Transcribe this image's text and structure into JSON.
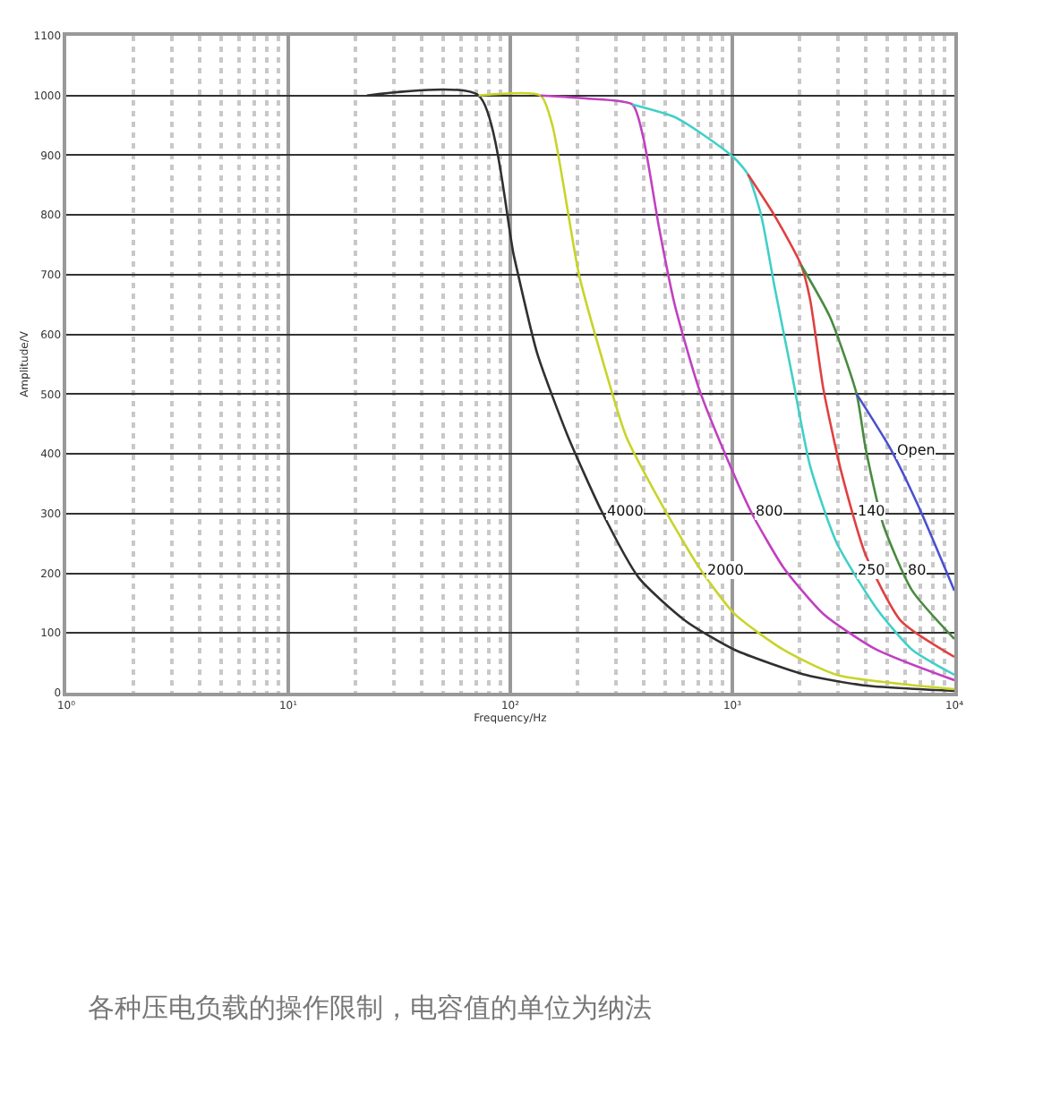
{
  "chart_data": {
    "type": "line",
    "xlabel": "Frequency/Hz",
    "ylabel": "Amplitude/V",
    "log": "x",
    "grid": true,
    "marker": "none",
    "line_style": "solid",
    "xlim": [
      1,
      10000
    ],
    "xticks": [
      {
        "value": 1,
        "label": "10⁰"
      },
      {
        "value": 2,
        "label": null
      },
      {
        "value": 3,
        "label": null
      },
      {
        "value": 4,
        "label": null
      },
      {
        "value": 5,
        "label": null
      },
      {
        "value": 6,
        "label": null
      },
      {
        "value": 7,
        "label": null
      },
      {
        "value": 8,
        "label": null
      },
      {
        "value": 9,
        "label": null
      },
      {
        "value": 10,
        "label": "10¹"
      },
      {
        "value": 20,
        "label": null
      },
      {
        "value": 30,
        "label": null
      },
      {
        "value": 40,
        "label": null
      },
      {
        "value": 50,
        "label": null
      },
      {
        "value": 60,
        "label": null
      },
      {
        "value": 70,
        "label": null
      },
      {
        "value": 80,
        "label": null
      },
      {
        "value": 90,
        "label": null
      },
      {
        "value": 100,
        "label": "10²"
      },
      {
        "value": 200,
        "label": null
      },
      {
        "value": 300,
        "label": null
      },
      {
        "value": 400,
        "label": null
      },
      {
        "value": 500,
        "label": null
      },
      {
        "value": 600,
        "label": null
      },
      {
        "value": 700,
        "label": null
      },
      {
        "value": 800,
        "label": null
      },
      {
        "value": 900,
        "label": null
      },
      {
        "value": 1000,
        "label": "10³"
      },
      {
        "value": 2000,
        "label": null
      },
      {
        "value": 3000,
        "label": null
      },
      {
        "value": 4000,
        "label": null
      },
      {
        "value": 5000,
        "label": null
      },
      {
        "value": 6000,
        "label": null
      },
      {
        "value": 7000,
        "label": null
      },
      {
        "value": 8000,
        "label": null
      },
      {
        "value": 9000,
        "label": null
      },
      {
        "value": 10000,
        "label": "10⁴"
      }
    ],
    "ylim": [
      0,
      1100
    ],
    "yticks": [
      0,
      100,
      200,
      300,
      400,
      500,
      600,
      700,
      800,
      900,
      1000,
      1100
    ],
    "series": [
      {
        "name": "4000",
        "color": "#303030",
        "x": [
          22.6,
          72,
          104,
          132,
          181,
          257,
          380,
          617,
          1023,
          2138,
          3981,
          10000
        ],
        "values": [
          1000,
          1000,
          730,
          569,
          431,
          305,
          192,
          120,
          72,
          30,
          12,
          3
        ]
      },
      {
        "name": "2000",
        "color": "#c8d42a",
        "x": [
          72,
          137,
          155,
          204,
          263,
          331,
          457,
          708,
          1023,
          1698,
          2951,
          10000
        ],
        "values": [
          1000,
          1000,
          949,
          700,
          551,
          431,
          330,
          210,
          132,
          72,
          30,
          6
        ]
      },
      {
        "name": "800",
        "color": "#c040c0",
        "x": [
          137,
          220,
          355,
          398,
          468,
          550,
          708,
          955,
          1230,
          1698,
          2570,
          4467,
          10000
        ],
        "values": [
          1000,
          995,
          985,
          928,
          778,
          650,
          509,
          389,
          299,
          210,
          132,
          72,
          21
        ]
      },
      {
        "name": "250",
        "color": "#40d0c8",
        "x": [
          355,
          550,
          741,
          1023,
          1175,
          1349,
          1549,
          1862,
          2239,
          2951,
          4467,
          6457,
          10000
        ],
        "values": [
          985,
          964,
          934,
          895,
          868,
          799,
          680,
          530,
          380,
          251,
          141,
          72,
          30
        ]
      },
      {
        "name": "140",
        "color": "#e04040",
        "x": [
          1175,
          1549,
          2042,
          2239,
          2570,
          3090,
          3981,
          5754,
          10000
        ],
        "values": [
          868,
          799,
          716,
          659,
          509,
          371,
          231,
          120,
          60
        ]
      },
      {
        "name": "80",
        "color": "#4a8a40",
        "x": [
          2042,
          2754,
          3631,
          3981,
          4786,
          6457,
          10000
        ],
        "values": [
          716,
          629,
          500,
          410,
          281,
          171,
          90
        ]
      },
      {
        "name": "Open",
        "color": "#4a50d0",
        "x": [
          3631,
          5129,
          6918,
          10000
        ],
        "values": [
          500,
          410,
          311,
          171
        ]
      }
    ],
    "annotations": [
      "各种压电负载的操作限制，电容值的单位为纳法"
    ]
  }
}
